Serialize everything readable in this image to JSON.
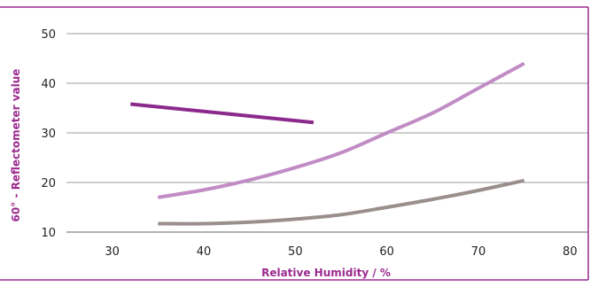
{
  "chart_data": {
    "type": "line",
    "xlabel": "Relative Humidity / %",
    "ylabel": "60° - Reflectometer value",
    "xlim": [
      25,
      82
    ],
    "ylim": [
      10,
      50
    ],
    "x_ticks": [
      30,
      40,
      50,
      60,
      70,
      80
    ],
    "y_ticks": [
      10,
      20,
      30,
      40,
      50
    ],
    "grid": "horizontal",
    "legend": "none",
    "colors": {
      "frame": "#9b2a8f",
      "grid": "#9c9c9c",
      "label": "#9b2a8f"
    },
    "series": [
      {
        "color": "#8b2a8c",
        "x": [
          32,
          52
        ],
        "y": [
          35.8,
          32.1
        ]
      },
      {
        "color": "#c18cc5",
        "x": [
          35,
          40,
          45,
          50,
          55,
          60,
          65,
          70,
          75
        ],
        "y": [
          17,
          18.5,
          20.5,
          23,
          26,
          30,
          34,
          39,
          44
        ]
      },
      {
        "color": "#9a8f8d",
        "x": [
          35,
          40,
          45,
          50,
          55,
          60,
          65,
          70,
          75
        ],
        "y": [
          11.7,
          11.7,
          12,
          12.6,
          13.5,
          15,
          16.6,
          18.4,
          20.4
        ]
      }
    ]
  }
}
